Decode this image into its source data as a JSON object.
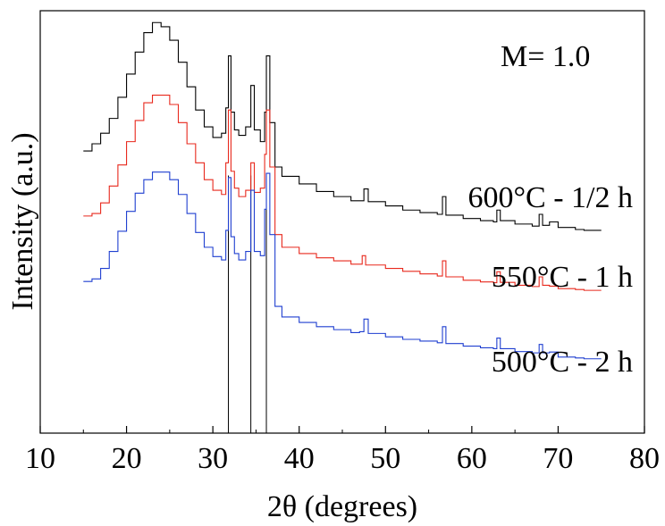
{
  "chart_data": {
    "type": "line",
    "title": "",
    "xlabel": "2θ (degrees)",
    "ylabel": "Intensity (a.u.)",
    "xlim": [
      10,
      80
    ],
    "x_ticks": [
      10,
      20,
      30,
      40,
      50,
      60,
      70,
      80
    ],
    "y_ticks_labeled": false,
    "annotation": "M= 1.0",
    "reference_lines_x": [
      31.8,
      34.4,
      36.2
    ],
    "series": [
      {
        "name": "600°C - 1/2 h",
        "color": "#000000",
        "points": [
          [
            15,
            0.668
          ],
          [
            16,
            0.685
          ],
          [
            17,
            0.71
          ],
          [
            18,
            0.745
          ],
          [
            19,
            0.795
          ],
          [
            20,
            0.85
          ],
          [
            21,
            0.902
          ],
          [
            22,
            0.948
          ],
          [
            23,
            0.972
          ],
          [
            24,
            0.962
          ],
          [
            25,
            0.93
          ],
          [
            26,
            0.878
          ],
          [
            27,
            0.82
          ],
          [
            28,
            0.765
          ],
          [
            29,
            0.725
          ],
          [
            30,
            0.7
          ],
          [
            31,
            0.71
          ],
          [
            31.5,
            0.77
          ],
          [
            31.8,
            0.893
          ],
          [
            32.1,
            0.76
          ],
          [
            32.5,
            0.718
          ],
          [
            33,
            0.705
          ],
          [
            33.8,
            0.725
          ],
          [
            34.4,
            0.823
          ],
          [
            34.8,
            0.718
          ],
          [
            35.5,
            0.69
          ],
          [
            36,
            0.76
          ],
          [
            36.2,
            0.893
          ],
          [
            36.6,
            0.735
          ],
          [
            37.2,
            0.63
          ],
          [
            38,
            0.608
          ],
          [
            40,
            0.59
          ],
          [
            42,
            0.572
          ],
          [
            44,
            0.56
          ],
          [
            46,
            0.55
          ],
          [
            47,
            0.55
          ],
          [
            47.5,
            0.578
          ],
          [
            48,
            0.548
          ],
          [
            50,
            0.538
          ],
          [
            52,
            0.528
          ],
          [
            54,
            0.522
          ],
          [
            56,
            0.518
          ],
          [
            56.6,
            0.56
          ],
          [
            57,
            0.516
          ],
          [
            59,
            0.508
          ],
          [
            61,
            0.503
          ],
          [
            62.5,
            0.5
          ],
          [
            62.9,
            0.528
          ],
          [
            63.3,
            0.503
          ],
          [
            65,
            0.495
          ],
          [
            67,
            0.49
          ],
          [
            67.8,
            0.518
          ],
          [
            68.2,
            0.492
          ],
          [
            69,
            0.5
          ],
          [
            70,
            0.487
          ],
          [
            72,
            0.482
          ],
          [
            73,
            0.48
          ],
          [
            75,
            0.48
          ]
        ]
      },
      {
        "name": "550°C - 1 h",
        "color": "#e8281c",
        "points": [
          [
            15,
            0.514
          ],
          [
            16,
            0.52
          ],
          [
            17,
            0.545
          ],
          [
            18,
            0.585
          ],
          [
            19,
            0.635
          ],
          [
            20,
            0.69
          ],
          [
            21,
            0.74
          ],
          [
            22,
            0.782
          ],
          [
            23,
            0.8
          ],
          [
            24,
            0.8
          ],
          [
            25,
            0.778
          ],
          [
            26,
            0.735
          ],
          [
            27,
            0.685
          ],
          [
            28,
            0.64
          ],
          [
            29,
            0.6
          ],
          [
            30,
            0.575
          ],
          [
            31,
            0.565
          ],
          [
            31.5,
            0.64
          ],
          [
            31.8,
            0.765
          ],
          [
            32.1,
            0.62
          ],
          [
            32.5,
            0.58
          ],
          [
            33,
            0.56
          ],
          [
            33.8,
            0.575
          ],
          [
            34.4,
            0.64
          ],
          [
            34.8,
            0.57
          ],
          [
            35.5,
            0.58
          ],
          [
            36,
            0.66
          ],
          [
            36.2,
            0.765
          ],
          [
            36.6,
            0.63
          ],
          [
            37.2,
            0.47
          ],
          [
            38,
            0.44
          ],
          [
            40,
            0.425
          ],
          [
            42,
            0.415
          ],
          [
            44,
            0.408
          ],
          [
            46,
            0.4
          ],
          [
            47,
            0.4
          ],
          [
            47.3,
            0.42
          ],
          [
            47.7,
            0.398
          ],
          [
            50,
            0.39
          ],
          [
            52,
            0.383
          ],
          [
            54,
            0.377
          ],
          [
            56,
            0.372
          ],
          [
            56.6,
            0.408
          ],
          [
            57,
            0.37
          ],
          [
            59,
            0.362
          ],
          [
            61,
            0.358
          ],
          [
            62.5,
            0.356
          ],
          [
            62.9,
            0.382
          ],
          [
            63.3,
            0.357
          ],
          [
            65,
            0.35
          ],
          [
            67,
            0.347
          ],
          [
            67.8,
            0.37
          ],
          [
            68.2,
            0.35
          ],
          [
            69,
            0.348
          ],
          [
            70,
            0.342
          ],
          [
            72,
            0.34
          ],
          [
            73,
            0.338
          ],
          [
            75,
            0.338
          ]
        ]
      },
      {
        "name": "500°C - 2 h",
        "color": "#1f3fd0",
        "points": [
          [
            15,
            0.359
          ],
          [
            16,
            0.365
          ],
          [
            17,
            0.39
          ],
          [
            18,
            0.43
          ],
          [
            19,
            0.478
          ],
          [
            20,
            0.525
          ],
          [
            21,
            0.568
          ],
          [
            22,
            0.6
          ],
          [
            23,
            0.618
          ],
          [
            24,
            0.618
          ],
          [
            25,
            0.6
          ],
          [
            26,
            0.565
          ],
          [
            27,
            0.52
          ],
          [
            28,
            0.475
          ],
          [
            29,
            0.44
          ],
          [
            30,
            0.418
          ],
          [
            31,
            0.41
          ],
          [
            31.5,
            0.48
          ],
          [
            31.8,
            0.605
          ],
          [
            32.1,
            0.465
          ],
          [
            32.5,
            0.425
          ],
          [
            33,
            0.41
          ],
          [
            33.8,
            0.43
          ],
          [
            34.4,
            0.575
          ],
          [
            34.8,
            0.43
          ],
          [
            35.5,
            0.42
          ],
          [
            36,
            0.53
          ],
          [
            36.2,
            0.615
          ],
          [
            36.6,
            0.47
          ],
          [
            37.2,
            0.3
          ],
          [
            38,
            0.275
          ],
          [
            40,
            0.262
          ],
          [
            42,
            0.252
          ],
          [
            44,
            0.245
          ],
          [
            46,
            0.238
          ],
          [
            47,
            0.24
          ],
          [
            47.5,
            0.27
          ],
          [
            48,
            0.236
          ],
          [
            50,
            0.228
          ],
          [
            52,
            0.222
          ],
          [
            54,
            0.218
          ],
          [
            56,
            0.214
          ],
          [
            56.6,
            0.252
          ],
          [
            57,
            0.212
          ],
          [
            59,
            0.206
          ],
          [
            61,
            0.202
          ],
          [
            62.5,
            0.2
          ],
          [
            62.9,
            0.225
          ],
          [
            63.3,
            0.2
          ],
          [
            65,
            0.193
          ],
          [
            67,
            0.19
          ],
          [
            67.8,
            0.21
          ],
          [
            68.2,
            0.19
          ],
          [
            69,
            0.192
          ],
          [
            70,
            0.18
          ],
          [
            72,
            0.178
          ],
          [
            73,
            0.176
          ],
          [
            75,
            0.176
          ]
        ]
      }
    ]
  }
}
